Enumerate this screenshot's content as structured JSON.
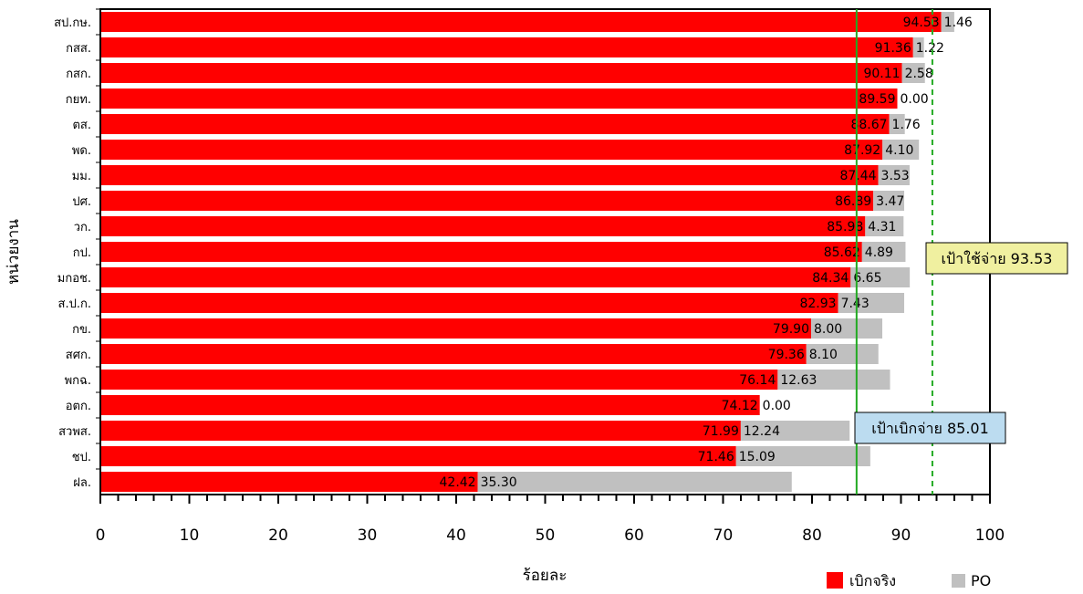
{
  "chart_data": {
    "type": "bar",
    "orientation": "horizontal",
    "stacked": true,
    "categories": [
      "สป.กษ.",
      "กสส.",
      "กสก.",
      "กยท.",
      "ตส.",
      "พด.",
      "มม.",
      "ปศ.",
      "วก.",
      "กป.",
      "มกอช.",
      "ส.ป.ก.",
      "กข.",
      "สศก.",
      "พกฉ.",
      "อตก.",
      "สวพส.",
      "ชป.",
      "ฝล."
    ],
    "series": [
      {
        "name": "เบิกจริง",
        "color": "#ff0000",
        "values": [
          94.53,
          91.36,
          90.11,
          89.59,
          88.67,
          87.92,
          87.44,
          86.89,
          85.98,
          85.62,
          84.34,
          82.93,
          79.9,
          79.36,
          76.14,
          74.12,
          71.99,
          71.46,
          42.42
        ]
      },
      {
        "name": "PO",
        "color": "#c0c0c0",
        "values": [
          1.46,
          1.22,
          2.58,
          0.0,
          1.76,
          4.1,
          3.53,
          3.47,
          4.31,
          4.89,
          6.65,
          7.43,
          8.0,
          8.1,
          12.63,
          0.0,
          12.24,
          15.09,
          35.3
        ]
      }
    ],
    "xlabel": "ร้อยละ",
    "ylabel": "หน่วยงาน",
    "xlim": [
      0,
      100
    ],
    "xticks": [
      0,
      10,
      20,
      30,
      40,
      50,
      60,
      70,
      80,
      90,
      100
    ],
    "targets": [
      {
        "label": "เป้าเบิกจ่าย 85.01",
        "value": 85.01,
        "style": "solid",
        "color": "#22aa22",
        "box_color": "#bcdcf0"
      },
      {
        "label": "เป้าใช้จ่าย 93.53",
        "value": 93.53,
        "style": "dashed",
        "color": "#22aa22",
        "box_color": "#f0f0a0"
      }
    ],
    "legend_position": "bottom-right",
    "grid": false
  }
}
